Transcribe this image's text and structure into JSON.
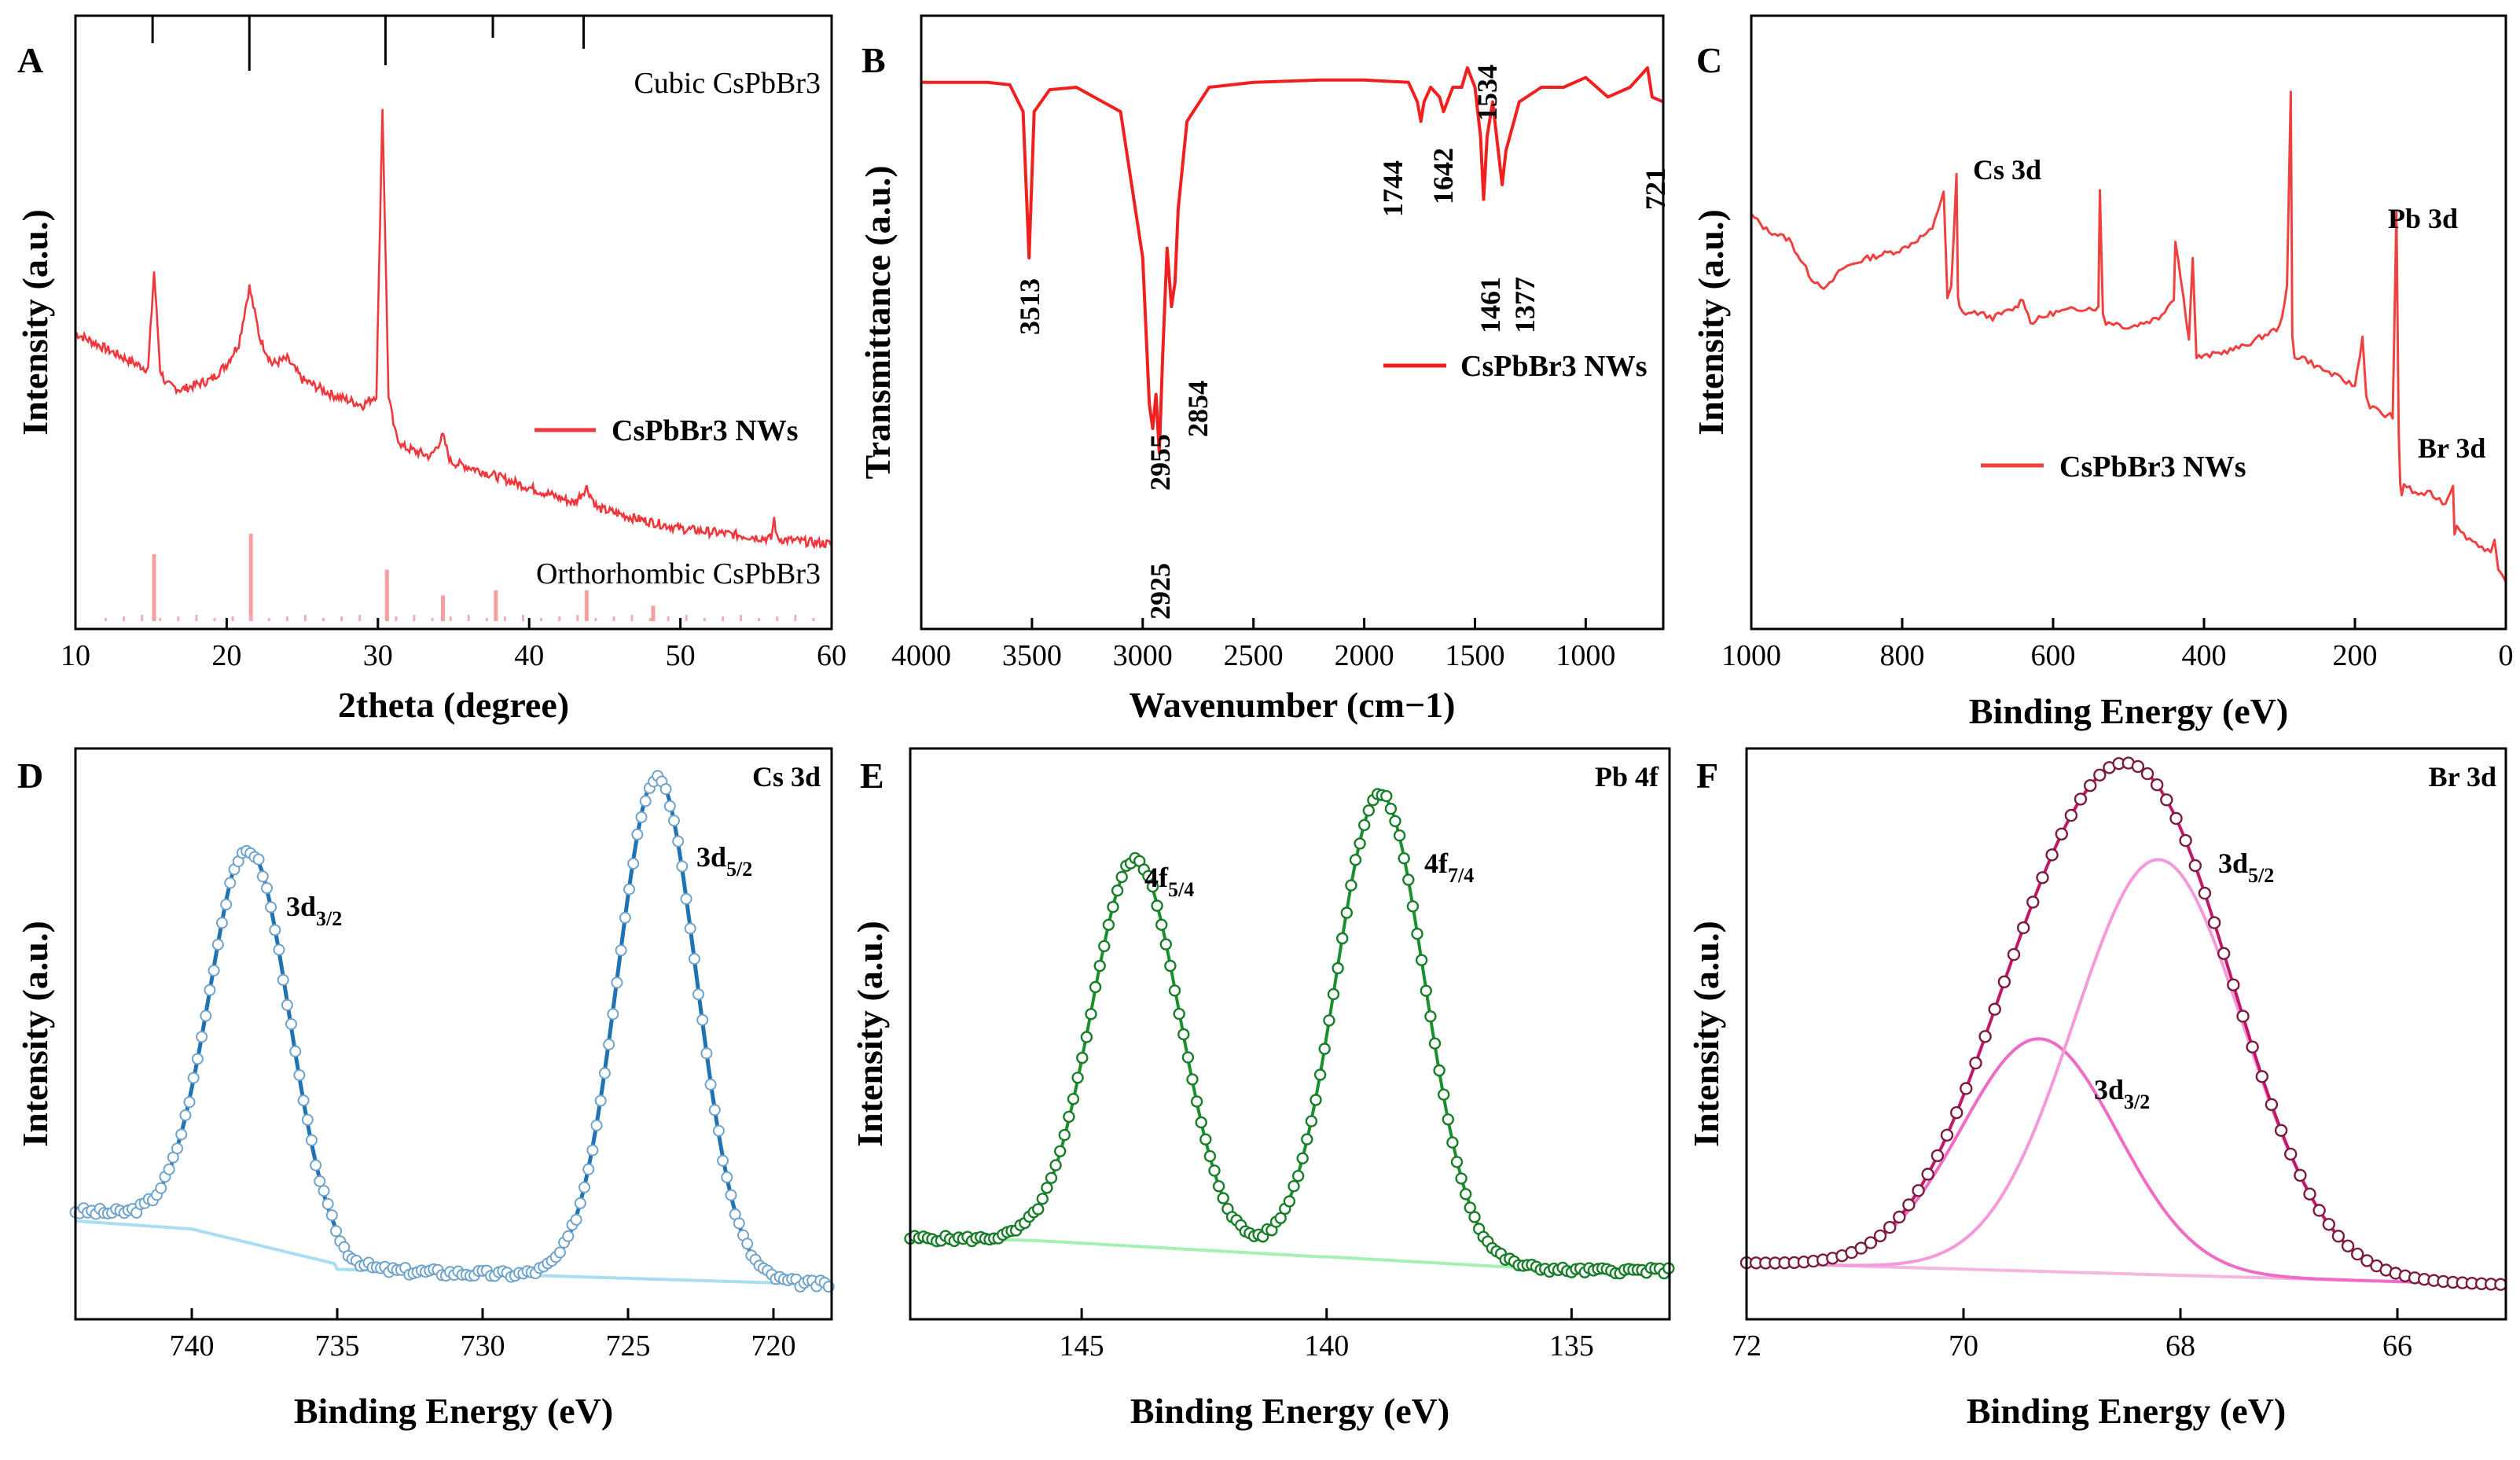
{
  "chart_data": [
    {
      "type": "line",
      "panel": "A",
      "xlabel": "2theta (degree)",
      "ylabel": "Intensity (a.u.)",
      "xlim": [
        10,
        60
      ],
      "xticks": [
        10,
        20,
        30,
        40,
        50,
        60
      ],
      "series": [
        {
          "name": "CsPbBr3 NWs",
          "color": "#f0383c",
          "x": [
            10,
            12,
            14,
            14.8,
            15.2,
            15.6,
            16,
            17,
            18,
            19,
            20,
            20.8,
            21.5,
            22.2,
            23,
            24,
            25,
            27,
            29,
            29.9,
            30.3,
            30.7,
            31.1,
            31.6,
            32.5,
            33.5,
            34.3,
            34.8,
            36,
            38,
            40,
            43,
            43.8,
            44.5,
            47,
            50,
            53,
            56,
            56.2,
            56.4,
            58,
            60
          ],
          "y": [
            0.56,
            0.53,
            0.5,
            0.49,
            0.68,
            0.49,
            0.46,
            0.45,
            0.46,
            0.47,
            0.5,
            0.54,
            0.65,
            0.55,
            0.5,
            0.51,
            0.47,
            0.44,
            0.42,
            0.44,
            1.0,
            0.44,
            0.37,
            0.34,
            0.33,
            0.32,
            0.36,
            0.31,
            0.3,
            0.28,
            0.26,
            0.23,
            0.26,
            0.22,
            0.2,
            0.18,
            0.17,
            0.16,
            0.2,
            0.16,
            0.155,
            0.15
          ]
        },
        {
          "name": "Orthorhombic CsPbBr3",
          "color": "#f4a0a0",
          "x": [
            15.2,
            21.6,
            30.6,
            34.3,
            37.8,
            43.8,
            48.2
          ],
          "y": [
            0.13,
            0.17,
            0.1,
            0.05,
            0.06,
            0.06,
            0.03
          ]
        }
      ],
      "reference": {
        "name": "Cubic CsPbBr3",
        "x": [
          15.1,
          21.5,
          30.5,
          37.6,
          43.6
        ],
        "rel": [
          0.5,
          1,
          0.9,
          0.4,
          0.6
        ]
      },
      "legend": "center-right",
      "text": {
        "letter": "A",
        "ref_top": "Cubic CsPbBr3",
        "ref_bottom": "Orthorhombic CsPbBr3",
        "legend_label": "CsPbBr3 NWs"
      }
    },
    {
      "type": "line",
      "panel": "B",
      "xlabel": "Wavenumber (cm−1)",
      "ylabel": "Transmittance (a.u.)",
      "xlim": [
        4000,
        650
      ],
      "xticks": [
        4000,
        3500,
        3000,
        2500,
        2000,
        1500,
        1000
      ],
      "series": [
        {
          "name": "CsPbBr3 NWs",
          "color": "#f0201f",
          "x": [
            4000,
            3700,
            3600,
            3540,
            3513,
            3490,
            3420,
            3300,
            3100,
            3000,
            2970,
            2955,
            2940,
            2925,
            2910,
            2890,
            2870,
            2854,
            2840,
            2800,
            2700,
            2500,
            2200,
            2000,
            1800,
            1760,
            1744,
            1730,
            1700,
            1660,
            1642,
            1600,
            1560,
            1534,
            1500,
            1475,
            1461,
            1445,
            1420,
            1390,
            1377,
            1360,
            1300,
            1200,
            1100,
            1000,
            900,
            800,
            740,
            721,
            700,
            650
          ],
          "y": [
            0.96,
            0.96,
            0.955,
            0.9,
            0.6,
            0.9,
            0.945,
            0.95,
            0.9,
            0.6,
            0.3,
            0.25,
            0.32,
            0.2,
            0.4,
            0.62,
            0.5,
            0.55,
            0.7,
            0.88,
            0.95,
            0.96,
            0.965,
            0.965,
            0.96,
            0.92,
            0.88,
            0.92,
            0.95,
            0.93,
            0.9,
            0.95,
            0.95,
            0.99,
            0.95,
            0.85,
            0.72,
            0.85,
            0.92,
            0.8,
            0.75,
            0.82,
            0.92,
            0.95,
            0.95,
            0.97,
            0.93,
            0.95,
            0.98,
            0.99,
            0.93,
            0.92
          ]
        }
      ],
      "peaks": [
        "3513",
        "2955",
        "2925",
        "2854",
        "1744",
        "1642",
        "1534",
        "1461",
        "1377",
        "721"
      ],
      "legend": "center-right",
      "text": {
        "letter": "B",
        "legend_label": "CsPbBr3 NWs"
      }
    },
    {
      "type": "line",
      "panel": "C",
      "xlabel": "Binding Energy (eV)",
      "ylabel": "Intensity (a.u.)",
      "xlim": [
        1000,
        0
      ],
      "xticks": [
        1000,
        800,
        600,
        400,
        200,
        0
      ],
      "series": [
        {
          "name": "CsPbBr3 NWs",
          "color": "#f04040",
          "x": [
            1000,
            980,
            950,
            920,
            900,
            880,
            850,
            800,
            780,
            760,
            745,
            740,
            735,
            728,
            726,
            724,
            720,
            700,
            680,
            650,
            640,
            630,
            600,
            560,
            540,
            538,
            534,
            530,
            520,
            500,
            460,
            440,
            438,
            420,
            415,
            410,
            400,
            350,
            300,
            290,
            285,
            283,
            280,
            270,
            250,
            200,
            190,
            185,
            180,
            160,
            150,
            145,
            142,
            140,
            138,
            135,
            120,
            100,
            80,
            70,
            68,
            65,
            60,
            40,
            20,
            15,
            10,
            5,
            0
          ],
          "y": [
            0.75,
            0.72,
            0.7,
            0.62,
            0.6,
            0.64,
            0.66,
            0.68,
            0.7,
            0.72,
            0.8,
            0.58,
            0.6,
            0.83,
            0.58,
            0.56,
            0.55,
            0.55,
            0.54,
            0.56,
            0.58,
            0.53,
            0.55,
            0.56,
            0.56,
            0.8,
            0.55,
            0.53,
            0.53,
            0.52,
            0.54,
            0.58,
            0.7,
            0.5,
            0.66,
            0.46,
            0.46,
            0.48,
            0.52,
            0.6,
            1.0,
            0.5,
            0.46,
            0.46,
            0.44,
            0.4,
            0.5,
            0.38,
            0.36,
            0.34,
            0.34,
            0.75,
            0.3,
            0.2,
            0.18,
            0.2,
            0.18,
            0.18,
            0.16,
            0.2,
            0.1,
            0.12,
            0.1,
            0.08,
            0.06,
            0.08,
            0.02,
            0.01,
            0.0
          ]
        }
      ],
      "legend": "bottom-left",
      "text": {
        "letter": "C",
        "cs": "Cs 3d",
        "pb": "Pb 3d",
        "br": "Br 3d",
        "legend_label": "CsPbBr3 NWs"
      }
    },
    {
      "type": "line",
      "panel": "D",
      "xlabel": "Binding Energy (eV)",
      "ylabel": "Intensity (a.u.)",
      "xlim": [
        744,
        718
      ],
      "xticks": [
        740,
        735,
        730,
        725,
        720
      ],
      "peaks": [
        {
          "center": 738.0,
          "height": 0.78,
          "width": 1.35,
          "label": "3d3/2"
        },
        {
          "center": 724.0,
          "height": 1.0,
          "width": 1.35,
          "label": "3d5/2"
        }
      ],
      "colors": {
        "fit": "#1f72b3",
        "marker": "#6fa3c9",
        "background": "#a9def2"
      },
      "text": {
        "letter": "D",
        "title": "Cs 3d",
        "p1": "3d",
        "p1sub": "3/2",
        "p2": "3d",
        "p2sub": "5/2"
      }
    },
    {
      "type": "line",
      "panel": "E",
      "xlabel": "Binding Energy (eV)",
      "ylabel": "Intensity (a.u.)",
      "xlim": [
        148.5,
        133
      ],
      "xticks": [
        145,
        140,
        135
      ],
      "peaks": [
        {
          "center": 143.9,
          "height": 0.83,
          "width": 0.9,
          "label": "4f5/4"
        },
        {
          "center": 138.9,
          "height": 1.0,
          "width": 0.9,
          "label": "4f7/4"
        }
      ],
      "colors": {
        "fit": "#1a8f2d",
        "marker": "#1a7d2a",
        "background": "#a6f0b4"
      },
      "text": {
        "letter": "E",
        "title": "Pb 4f",
        "p1": "4f",
        "p1sub": "5/4",
        "p2": "4f",
        "p2sub": "7/4"
      }
    },
    {
      "type": "line",
      "panel": "F",
      "xlabel": "Binding Energy (eV)",
      "ylabel": "Intensity (a.u.)",
      "xlim": [
        72,
        65
      ],
      "xticks": [
        72,
        70,
        68,
        66
      ],
      "peaks": [
        {
          "center": 68.2,
          "height": 1.0,
          "width": 0.78,
          "label": "3d5/2"
        },
        {
          "center": 69.3,
          "height": 0.56,
          "width": 0.72,
          "label": "3d3/2"
        }
      ],
      "colors": {
        "envelope": "#c2186b",
        "marker": "#7a1a3c",
        "component": "#f06bc6",
        "background": "#f3b6de"
      },
      "text": {
        "letter": "F",
        "title": "Br 3d",
        "p1": "3d",
        "p1sub": "5/2",
        "p2": "3d",
        "p2sub": "3/2"
      }
    }
  ]
}
